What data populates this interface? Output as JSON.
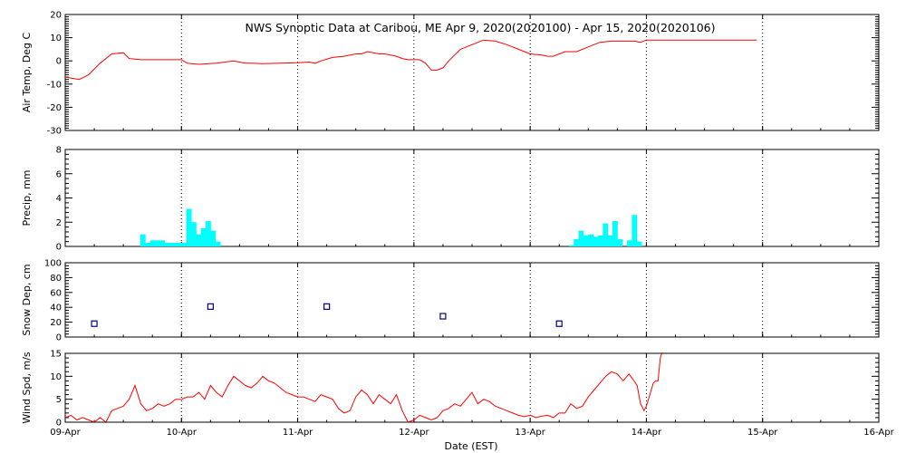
{
  "title": "NWS Synoptic Data at Caribou, ME   Apr  9, 2020(2020100) - Apr 15, 2020(2020106)",
  "xlabel": "Date (EST)",
  "x_ticks": [
    "09-Apr",
    "10-Apr",
    "11-Apr",
    "12-Apr",
    "13-Apr",
    "14-Apr",
    "15-Apr",
    "16-Apr"
  ],
  "x_range": [
    0,
    7
  ],
  "colors": {
    "temp": "#ff0000",
    "precip": "#00ffff",
    "snow": "#00008b",
    "wind": "#ff0000",
    "grid": "#000000"
  },
  "chart_data": [
    {
      "type": "line",
      "ylabel": "Air Temp, Deg C",
      "ylim": [
        -30,
        20
      ],
      "yticks": [
        -30,
        -20,
        -10,
        0,
        10,
        20
      ],
      "grid": "vertical dotted",
      "x_units": "days since 09-Apr 00:00",
      "series": [
        {
          "x": [
            0.0,
            0.12,
            0.2,
            0.3,
            0.4,
            0.5,
            0.55,
            0.65,
            0.75,
            0.8,
            0.9,
            1.0,
            1.05,
            1.15,
            1.3,
            1.45,
            1.55,
            1.6,
            1.7,
            1.85,
            2.0,
            2.1,
            2.15,
            2.2,
            2.3,
            2.4,
            2.5,
            2.55,
            2.6,
            2.65,
            2.7,
            2.75,
            2.8,
            2.85,
            2.9,
            2.95,
            3.0,
            3.05,
            3.1,
            3.15,
            3.2,
            3.25,
            3.3,
            3.4,
            3.5,
            3.6,
            3.7,
            3.8,
            3.9,
            4.0,
            4.1,
            4.15,
            4.2,
            4.3,
            4.4,
            4.5,
            4.6,
            4.7,
            4.8,
            4.9,
            4.95,
            5.0,
            5.05,
            5.2,
            5.4,
            5.6,
            5.8,
            5.95
          ],
          "y": [
            -7,
            -8,
            -6,
            -1,
            3,
            3.5,
            1,
            0.5,
            0.5,
            0.5,
            0.5,
            0.5,
            -1,
            -1.5,
            -1,
            0,
            -1,
            -1,
            -1.2,
            -1,
            -0.8,
            -0.5,
            -1,
            0,
            1.5,
            2,
            3,
            3,
            4,
            3.5,
            3,
            3,
            2.5,
            2,
            1,
            0.5,
            0.5,
            0.5,
            -1,
            -4,
            -4,
            -3,
            0,
            5,
            7,
            9,
            8.5,
            7,
            5,
            3,
            2.5,
            2,
            2,
            4,
            4,
            6,
            8,
            8.5,
            8.5,
            8.5,
            8,
            9,
            9,
            9,
            9,
            9,
            9,
            9
          ]
        }
      ]
    },
    {
      "type": "bar",
      "ylabel": "Precip, mm",
      "ylim": [
        0,
        8
      ],
      "yticks": [
        0,
        2,
        4,
        6,
        8
      ],
      "grid": "vertical dotted",
      "bar_width_days": 0.04167,
      "series": [
        {
          "x": [
            0.6458,
            0.6875,
            0.7292,
            0.7708,
            0.8125,
            0.8542,
            0.8958,
            0.9375,
            0.9792,
            1.0208,
            1.0417,
            1.0833,
            1.125,
            1.1667,
            1.2083,
            1.25,
            1.2917,
            1.3333,
            4.3333,
            4.375,
            4.4167,
            4.4583,
            4.5,
            4.5417,
            4.5833,
            4.625,
            4.6667,
            4.7083,
            4.75,
            4.7917,
            4.8333,
            4.875,
            4.9167,
            4.9583
          ],
          "y": [
            1.0,
            0.3,
            0.5,
            0.5,
            0.5,
            0.3,
            0.3,
            0.3,
            0.3,
            0.3,
            3.1,
            2.0,
            1.0,
            1.5,
            2.1,
            1.3,
            0.4,
            0.0,
            0.1,
            0.6,
            1.3,
            0.9,
            1.0,
            0.8,
            0.9,
            1.9,
            0.9,
            2.1,
            0.6,
            0.0,
            0.5,
            2.6,
            0.4,
            0.0
          ]
        }
      ]
    },
    {
      "type": "scatter",
      "ylabel": "Snow Dep, cm",
      "ylim": [
        0,
        100
      ],
      "yticks": [
        0,
        20,
        40,
        60,
        80,
        100
      ],
      "grid": "vertical dotted",
      "marker": "square",
      "series": [
        {
          "x": [
            0.25,
            1.25,
            2.25,
            3.25,
            4.25
          ],
          "y": [
            18,
            41,
            41,
            28,
            18
          ]
        }
      ]
    },
    {
      "type": "line",
      "ylabel": "Wind Spd, m/s",
      "ylim": [
        0,
        15
      ],
      "yticks": [
        0,
        5,
        10,
        15
      ],
      "grid": "vertical dotted",
      "series": [
        {
          "x": [
            0.0,
            0.05,
            0.1,
            0.15,
            0.2,
            0.25,
            0.3,
            0.35,
            0.4,
            0.45,
            0.5,
            0.55,
            0.6,
            0.65,
            0.7,
            0.75,
            0.8,
            0.85,
            0.9,
            0.95,
            1.0,
            1.05,
            1.1,
            1.15,
            1.2,
            1.25,
            1.3,
            1.35,
            1.4,
            1.45,
            1.5,
            1.55,
            1.6,
            1.65,
            1.7,
            1.75,
            1.8,
            1.85,
            1.9,
            1.95,
            2.0,
            2.05,
            2.1,
            2.15,
            2.2,
            2.25,
            2.3,
            2.35,
            2.4,
            2.45,
            2.5,
            2.55,
            2.6,
            2.65,
            2.7,
            2.75,
            2.8,
            2.85,
            2.9,
            2.95,
            3.0,
            3.05,
            3.1,
            3.15,
            3.2,
            3.25,
            3.3,
            3.35,
            3.4,
            3.45,
            3.5,
            3.55,
            3.6,
            3.65,
            3.7,
            3.75,
            3.8,
            3.85,
            3.9,
            3.95,
            4.0,
            4.05,
            4.1,
            4.15,
            4.2,
            4.25,
            4.3,
            4.35,
            4.4,
            4.45,
            4.5,
            4.55,
            4.6,
            4.65,
            4.7,
            4.75,
            4.8,
            4.85,
            4.88,
            4.92,
            4.95,
            4.98,
            5.0,
            5.03,
            5.06,
            5.08,
            5.1,
            5.12,
            5.14,
            5.16
          ],
          "y": [
            1,
            1.5,
            0.5,
            1,
            0.5,
            0,
            1,
            0,
            2.5,
            3,
            3.5,
            5,
            8,
            4,
            2.5,
            3,
            4,
            3.5,
            4,
            5,
            5,
            5.5,
            5.5,
            6.5,
            5,
            8,
            6.5,
            5.5,
            8,
            10,
            9,
            8,
            7.5,
            8.5,
            10,
            9,
            8.5,
            7.5,
            6.5,
            6,
            5.5,
            5.5,
            5,
            4.5,
            6,
            5.5,
            5,
            3,
            2,
            2.5,
            5.5,
            7,
            6,
            4,
            6,
            5,
            4,
            6,
            2.5,
            0,
            0.5,
            1.5,
            1,
            0.5,
            1,
            2.5,
            3,
            4,
            3.5,
            5,
            6.5,
            4,
            5,
            4.5,
            3.5,
            3,
            2.5,
            2,
            1.5,
            1.2,
            1.5,
            1,
            1.3,
            1.5,
            1,
            2,
            2,
            4,
            3,
            3.5,
            5.5,
            7,
            8.5,
            10,
            11,
            10.5,
            9,
            10.5,
            9.5,
            8,
            4,
            2.5,
            3.5,
            6,
            8.5,
            9,
            9,
            14,
            15.5,
            15.5
          ]
        }
      ]
    }
  ]
}
